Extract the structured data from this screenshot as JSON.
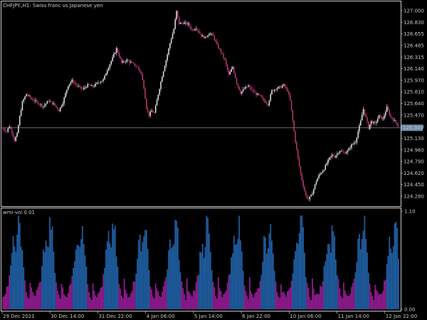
{
  "colors": {
    "background": "#000000",
    "text": "#c8c8c8",
    "frame": "#c8c8c8",
    "candle_up": "#e8e8e8",
    "candle_down": "#c03878",
    "bid_line": "#8a8a8a",
    "price_tag_bg": "#6a8aa8",
    "volume_high": "#1e5a9a",
    "volume_low": "#8a1a8a"
  },
  "chart_data": [
    {
      "type": "candlestick",
      "title": "CHFJPY.,H1:  Swiss franc vs Japanese yen",
      "y_ticks": [
        "127.000",
        "126.830",
        "126.655",
        "126.485",
        "126.315",
        "126.140",
        "125.970",
        "125.810",
        "125.640",
        "125.470",
        "125.300",
        "125.130",
        "124.960",
        "124.790",
        "124.620",
        "124.450",
        "124.280"
      ],
      "ylim": [
        124.2,
        127.05
      ],
      "current_price": "125.303",
      "current_price_value": 125.303,
      "path": [
        [
          0,
          125.29
        ],
        [
          3,
          125.25
        ],
        [
          5,
          125.33
        ],
        [
          7,
          125.24
        ],
        [
          9,
          125.12
        ],
        [
          11,
          125.21
        ],
        [
          13,
          125.47
        ],
        [
          15,
          125.68
        ],
        [
          18,
          125.8
        ],
        [
          22,
          125.73
        ],
        [
          27,
          125.67
        ],
        [
          31,
          125.62
        ],
        [
          35,
          125.7
        ],
        [
          39,
          125.65
        ],
        [
          43,
          125.56
        ],
        [
          46,
          125.68
        ],
        [
          50,
          125.93
        ],
        [
          53,
          126.0
        ],
        [
          57,
          125.92
        ],
        [
          61,
          125.87
        ],
        [
          65,
          125.93
        ],
        [
          69,
          125.91
        ],
        [
          73,
          125.97
        ],
        [
          77,
          126.01
        ],
        [
          80,
          126.16
        ],
        [
          84,
          126.33
        ],
        [
          87,
          126.47
        ],
        [
          91,
          126.26
        ],
        [
          95,
          126.3
        ],
        [
          99,
          126.25
        ],
        [
          103,
          126.2
        ],
        [
          106,
          126.1
        ],
        [
          108,
          125.9
        ],
        [
          110,
          125.6
        ],
        [
          112,
          125.49
        ],
        [
          114,
          125.55
        ],
        [
          116,
          125.52
        ],
        [
          119,
          125.8
        ],
        [
          122,
          126.07
        ],
        [
          125,
          126.3
        ],
        [
          128,
          126.55
        ],
        [
          131,
          126.76
        ],
        [
          133,
          127.02
        ],
        [
          135,
          126.84
        ],
        [
          138,
          126.85
        ],
        [
          142,
          126.83
        ],
        [
          145,
          126.74
        ],
        [
          148,
          126.78
        ],
        [
          152,
          126.66
        ],
        [
          155,
          126.63
        ],
        [
          158,
          126.7
        ],
        [
          161,
          126.66
        ],
        [
          164,
          126.52
        ],
        [
          167,
          126.42
        ],
        [
          170,
          126.3
        ],
        [
          173,
          126.08
        ],
        [
          176,
          126.2
        ],
        [
          179,
          125.97
        ],
        [
          182,
          125.82
        ],
        [
          185,
          125.88
        ],
        [
          188,
          125.92
        ],
        [
          191,
          125.85
        ],
        [
          194,
          125.8
        ],
        [
          197,
          125.77
        ],
        [
          200,
          125.7
        ],
        [
          203,
          125.65
        ],
        [
          206,
          125.85
        ],
        [
          209,
          125.88
        ],
        [
          212,
          125.9
        ],
        [
          215,
          125.93
        ],
        [
          218,
          125.85
        ],
        [
          220,
          125.7
        ],
        [
          222,
          125.4
        ],
        [
          224,
          125.1
        ],
        [
          226,
          124.85
        ],
        [
          228,
          124.62
        ],
        [
          230,
          124.45
        ],
        [
          232,
          124.3
        ],
        [
          234,
          124.25
        ],
        [
          236,
          124.3
        ],
        [
          238,
          124.4
        ],
        [
          240,
          124.52
        ],
        [
          242,
          124.6
        ],
        [
          244,
          124.65
        ],
        [
          246,
          124.7
        ],
        [
          248,
          124.78
        ],
        [
          250,
          124.85
        ],
        [
          252,
          124.9
        ],
        [
          254,
          124.88
        ],
        [
          256,
          124.92
        ],
        [
          258,
          124.97
        ],
        [
          261,
          124.93
        ],
        [
          264,
          124.96
        ],
        [
          267,
          125.05
        ],
        [
          270,
          125.1
        ],
        [
          272,
          125.25
        ],
        [
          274,
          125.4
        ],
        [
          276,
          125.58
        ],
        [
          278,
          125.45
        ],
        [
          280,
          125.3
        ],
        [
          282,
          125.4
        ],
        [
          285,
          125.36
        ],
        [
          288,
          125.48
        ],
        [
          291,
          125.43
        ],
        [
          294,
          125.6
        ],
        [
          297,
          125.46
        ],
        [
          300,
          125.4
        ],
        [
          303,
          125.33
        ]
      ],
      "n_bars": 304
    },
    {
      "type": "bar",
      "title": "wmi-vol 0.01",
      "y_ticks": [
        "1.10",
        "0.00"
      ],
      "ylim": [
        0,
        1.1
      ],
      "x_ticks": [
        "29 Dec 2021",
        "30 Dec 14:00",
        "31 Dec 22:00",
        "4 Jan 06:00",
        "5 Jan 14:00",
        "6 Jan 22:00",
        "10 Jan 06:00",
        "11 Jan 14:00",
        "12 Jan 22:00"
      ],
      "x_tick_bars": [
        0,
        40,
        80,
        120,
        160,
        200,
        240,
        280,
        320
      ],
      "period_bars": 24,
      "period_profile": [
        0.32,
        0.22,
        0.18,
        0.15,
        0.16,
        0.2,
        0.24,
        0.28,
        0.35,
        0.45,
        0.62,
        0.72,
        0.8,
        0.65,
        0.75,
        0.92,
        0.98,
        0.82,
        0.6,
        0.42,
        0.3,
        0.22,
        0.15,
        0.12
      ],
      "n_bars": 304
    }
  ]
}
